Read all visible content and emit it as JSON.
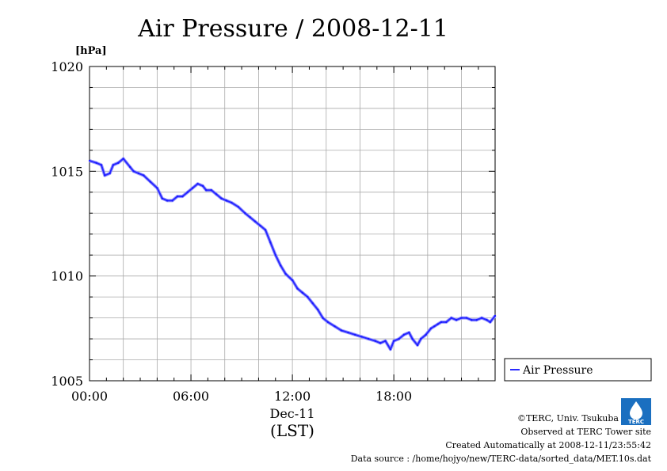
{
  "chart_data": {
    "type": "line",
    "title": "Air Pressure / 2008-12-11",
    "ylabel": "[hPa]",
    "xlabel": "(LST)",
    "x_date_label": "Dec-11",
    "ylim": [
      1005,
      1020
    ],
    "xlim_hours": [
      0,
      23.99
    ],
    "y_ticks": [
      1005,
      1010,
      1015,
      1020
    ],
    "x_ticks": [
      {
        "hour": 0,
        "label": "00:00"
      },
      {
        "hour": 6,
        "label": "06:00"
      },
      {
        "hour": 12,
        "label": "12:00"
      },
      {
        "hour": 18,
        "label": "18:00"
      }
    ],
    "grid": true,
    "legend_position": "right",
    "series": [
      {
        "name": "Air Pressure",
        "color": "#2a2aff",
        "x_hours": [
          0.0,
          0.4,
          0.7,
          0.9,
          1.2,
          1.4,
          1.7,
          2.0,
          2.4,
          2.6,
          2.9,
          3.2,
          3.6,
          4.0,
          4.3,
          4.6,
          4.9,
          5.2,
          5.5,
          5.8,
          6.1,
          6.4,
          6.7,
          6.9,
          7.2,
          7.5,
          7.8,
          8.1,
          8.4,
          8.8,
          9.2,
          9.5,
          9.8,
          10.1,
          10.4,
          10.7,
          11.0,
          11.3,
          11.6,
          12.0,
          12.3,
          12.6,
          12.9,
          13.2,
          13.5,
          13.8,
          14.1,
          14.5,
          14.9,
          15.3,
          15.7,
          16.1,
          16.5,
          16.9,
          17.2,
          17.5,
          17.8,
          18.0,
          18.3,
          18.6,
          18.9,
          19.1,
          19.4,
          19.6,
          19.9,
          20.2,
          20.4,
          20.6,
          20.8,
          21.1,
          21.4,
          21.7,
          22.0,
          22.3,
          22.6,
          22.9,
          23.2,
          23.5,
          23.7,
          23.99
        ],
        "values": [
          1015.5,
          1015.4,
          1015.3,
          1014.8,
          1014.9,
          1015.3,
          1015.4,
          1015.6,
          1015.2,
          1015.0,
          1014.9,
          1014.8,
          1014.5,
          1014.2,
          1013.7,
          1013.6,
          1013.6,
          1013.8,
          1013.8,
          1014.0,
          1014.2,
          1014.4,
          1014.3,
          1014.1,
          1014.1,
          1013.9,
          1013.7,
          1013.6,
          1013.5,
          1013.3,
          1013.0,
          1012.8,
          1012.6,
          1012.4,
          1012.2,
          1011.6,
          1011.0,
          1010.5,
          1010.1,
          1009.8,
          1009.4,
          1009.2,
          1009.0,
          1008.7,
          1008.4,
          1008.0,
          1007.8,
          1007.6,
          1007.4,
          1007.3,
          1007.2,
          1007.1,
          1007.0,
          1006.9,
          1006.8,
          1006.9,
          1006.5,
          1006.9,
          1007.0,
          1007.2,
          1007.3,
          1007.0,
          1006.7,
          1007.0,
          1007.2,
          1007.5,
          1007.6,
          1007.7,
          1007.8,
          1007.8,
          1008.0,
          1007.9,
          1008.0,
          1008.0,
          1007.9,
          1007.9,
          1008.0,
          1007.9,
          1007.8,
          1008.1
        ]
      }
    ]
  },
  "credits": {
    "copyright": "©TERC, Univ. Tsukuba",
    "site": "Observed at TERC Tower site",
    "created": "Created Automatically at 2008-12-11/23:55:42",
    "source": "Data source : /home/hojyo/new/TERC-data/sorted_data/MET.10s.dat",
    "logo_text": "TERC"
  }
}
